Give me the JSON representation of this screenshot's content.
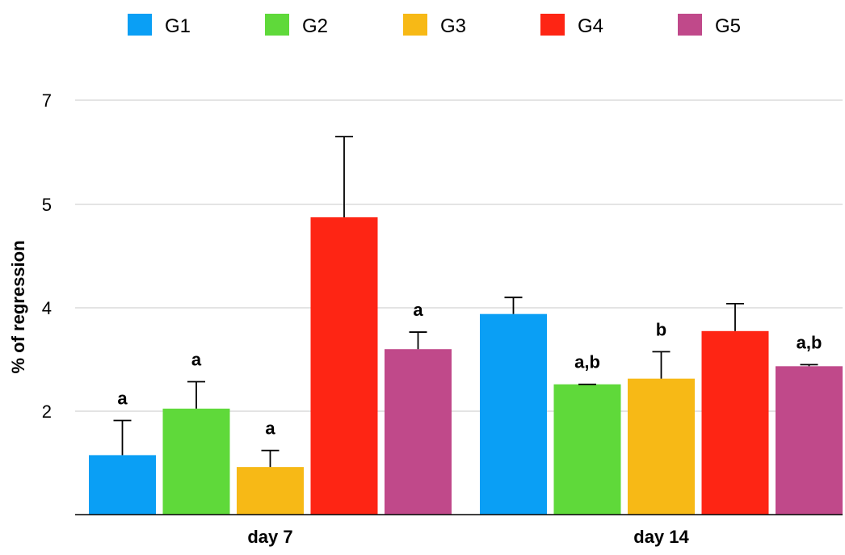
{
  "chart_data": {
    "type": "bar",
    "categories": [
      "day 7",
      "day 14"
    ],
    "series": [
      {
        "name": "G1",
        "color": "#0a9ff5",
        "values": [
          1.15,
          3.88
        ],
        "errors": [
          0.67,
          0.32
        ],
        "annotations": [
          "a",
          ""
        ]
      },
      {
        "name": "G2",
        "color": "#5fd93a",
        "values": [
          2.05,
          2.52
        ],
        "errors": [
          0.52,
          0.0
        ],
        "annotations": [
          "a",
          "a,b"
        ]
      },
      {
        "name": "G3",
        "color": "#f7b916",
        "values": [
          0.92,
          2.63
        ],
        "errors": [
          0.32,
          0.52
        ],
        "annotations": [
          "a",
          "b"
        ]
      },
      {
        "name": "G4",
        "color": "#fe2514",
        "values": [
          5.75,
          3.55
        ],
        "errors": [
          1.56,
          0.53
        ],
        "annotations": [
          "",
          ""
        ]
      },
      {
        "name": "G5",
        "color": "#c0498a",
        "values": [
          3.2,
          2.87
        ],
        "errors": [
          0.33,
          0.03
        ],
        "annotations": [
          "a",
          "a,b"
        ]
      }
    ],
    "y_ticks": [
      "2",
      "4",
      "5",
      "7"
    ],
    "ylabel": "% of regression",
    "xlabel": "",
    "title": "",
    "legend_position": "top-center",
    "grid": true
  }
}
